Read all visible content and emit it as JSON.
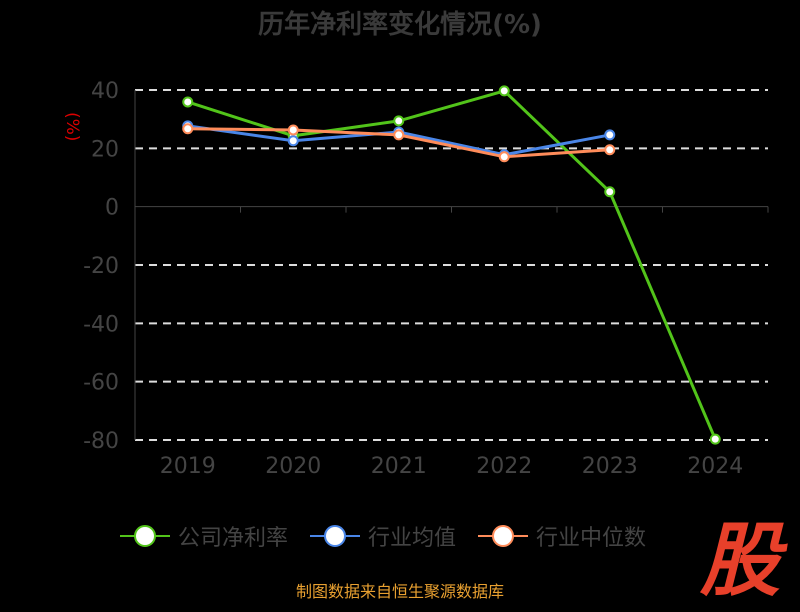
{
  "chart_data": {
    "type": "line",
    "title": "历年净利率变化情况(%)",
    "ylabel": "(%)",
    "xlabel": "",
    "categories": [
      "2019",
      "2020",
      "2021",
      "2022",
      "2023",
      "2024"
    ],
    "ylim": [
      -80,
      40
    ],
    "yticks": [
      40,
      20,
      0,
      -20,
      -40,
      -60,
      -80
    ],
    "grid": true,
    "legend_position": "bottom",
    "series": [
      {
        "name": "公司净利率",
        "color": "#52c41a",
        "values": [
          35.9,
          24.3,
          29.4,
          39.7,
          5.1,
          -79.7
        ]
      },
      {
        "name": "行业均值",
        "color": "#4a86e8",
        "values": [
          27.7,
          22.6,
          25.6,
          17.8,
          24.6,
          null
        ]
      },
      {
        "name": "行业中位数",
        "color": "#ff8c5a",
        "values": [
          26.7,
          26.3,
          24.6,
          17.1,
          19.5,
          null
        ]
      }
    ]
  },
  "footer": "制图数据来自恒生聚源数据库",
  "logo": "股"
}
